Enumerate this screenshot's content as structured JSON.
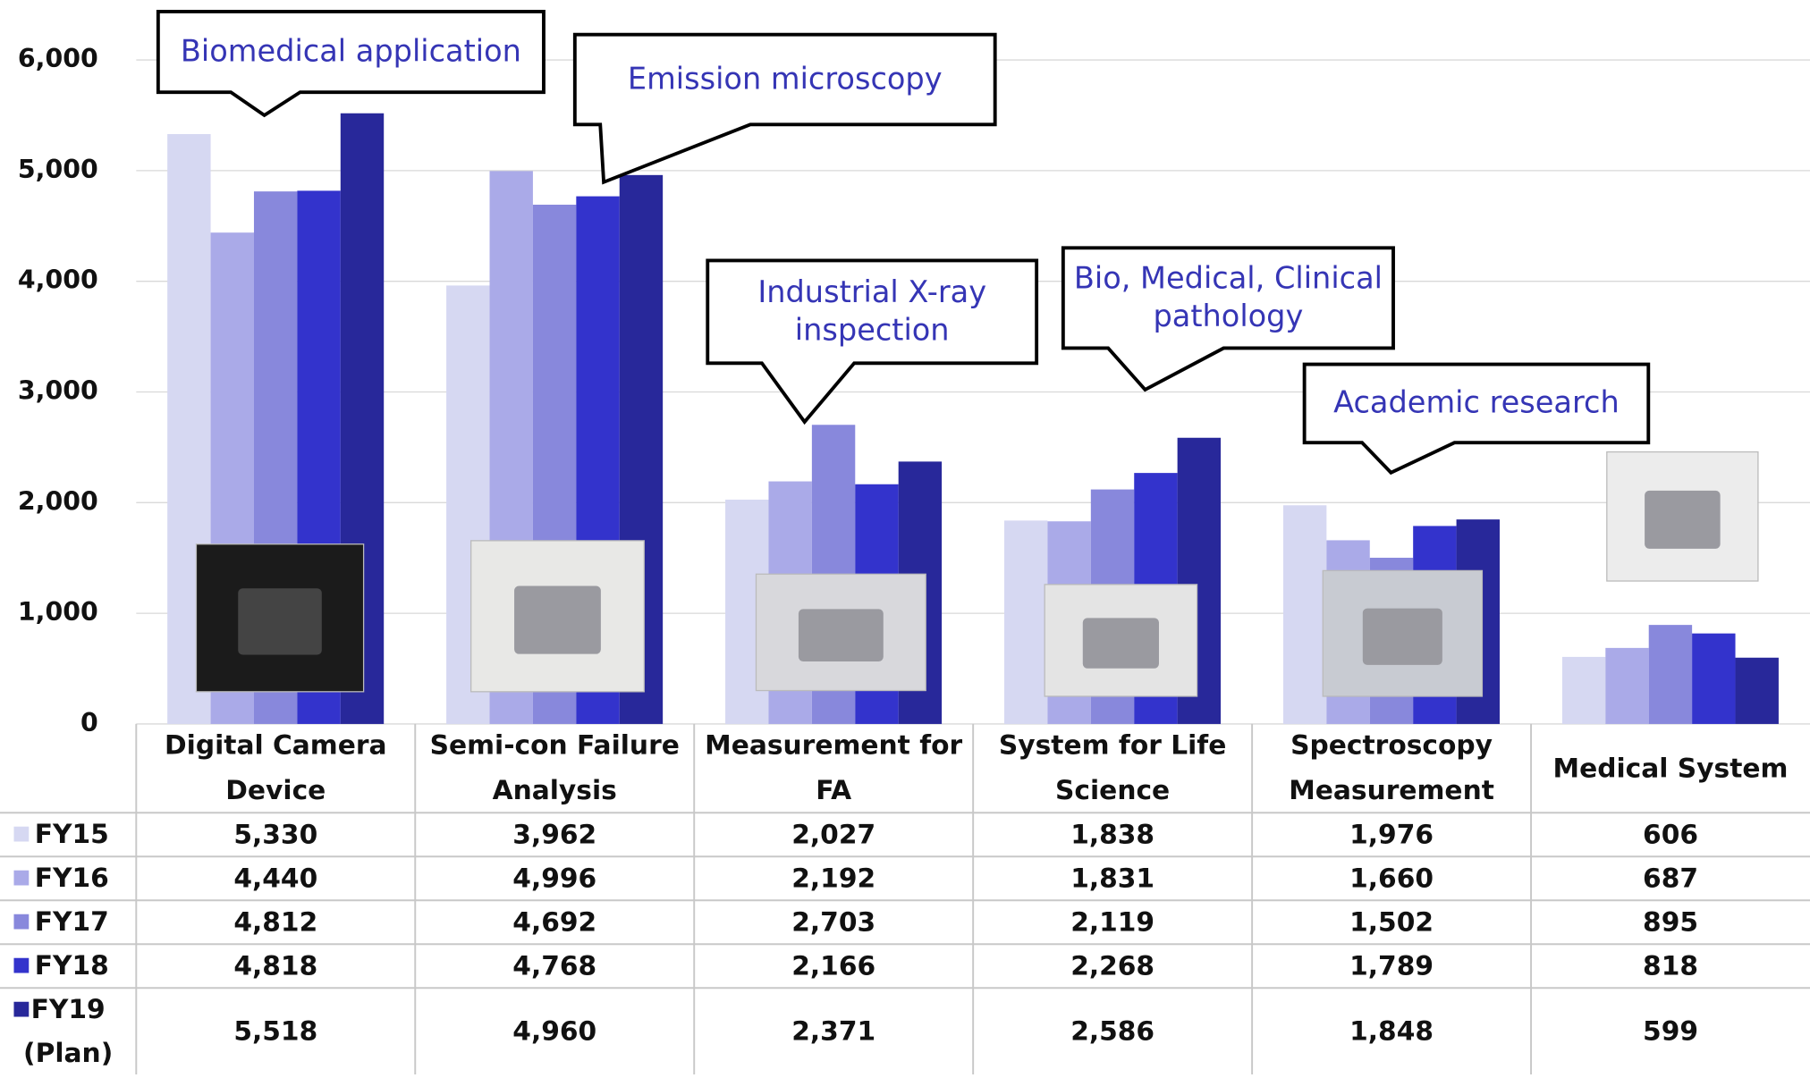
{
  "chart_data": {
    "type": "bar",
    "categories": [
      "Digital Camera Device",
      "Semi-con Failure Analysis",
      "Measurement for FA",
      "System for Life Science",
      "Spectroscopy Measurement",
      "Medical System"
    ],
    "series": [
      {
        "name": "FY15",
        "color": "#d6d8f2",
        "values": [
          5330,
          3962,
          2027,
          1838,
          1976,
          606
        ],
        "value_labels": [
          "5,330",
          "3,962",
          "2,027",
          "1,838",
          "1,976",
          "606"
        ]
      },
      {
        "name": "FY16",
        "color": "#aaaae8",
        "values": [
          4440,
          4996,
          2192,
          1831,
          1660,
          687
        ],
        "value_labels": [
          "4,440",
          "4,996",
          "2,192",
          "1,831",
          "1,660",
          "687"
        ]
      },
      {
        "name": "FY17",
        "color": "#8888dc",
        "values": [
          4812,
          4692,
          2703,
          2119,
          1502,
          895
        ],
        "value_labels": [
          "4,812",
          "4,692",
          "2,703",
          "2,119",
          "1,502",
          "895"
        ]
      },
      {
        "name": "FY18",
        "color": "#3333cc",
        "values": [
          4818,
          4768,
          2166,
          2268,
          1789,
          818
        ],
        "value_labels": [
          "4,818",
          "4,768",
          "2,166",
          "2,268",
          "1,789",
          "818"
        ]
      },
      {
        "name": "FY19 (Plan)",
        "color": "#28289a",
        "values": [
          5518,
          4960,
          2371,
          2586,
          1848,
          599
        ],
        "value_labels": [
          "5,518",
          "4,960",
          "2,371",
          "2,586",
          "1,848",
          "599"
        ]
      }
    ],
    "ylim": [
      0,
      6000
    ],
    "yticks": [
      0,
      {
        "value": 1000,
        "label": "1,000"
      },
      {
        "value": 2000,
        "label": "2,000"
      },
      {
        "value": 3000,
        "label": "3,000"
      },
      {
        "value": 4000,
        "label": "4,000"
      },
      {
        "value": 5000,
        "label": "5,000"
      },
      {
        "value": 6000,
        "label": "6,000"
      }
    ],
    "grid": true,
    "annotations": [
      "Biomedical application",
      "Emission microscopy",
      "Industrial X-ray inspection",
      "Bio, Medical, Clinical pathology",
      "Academic research"
    ]
  }
}
